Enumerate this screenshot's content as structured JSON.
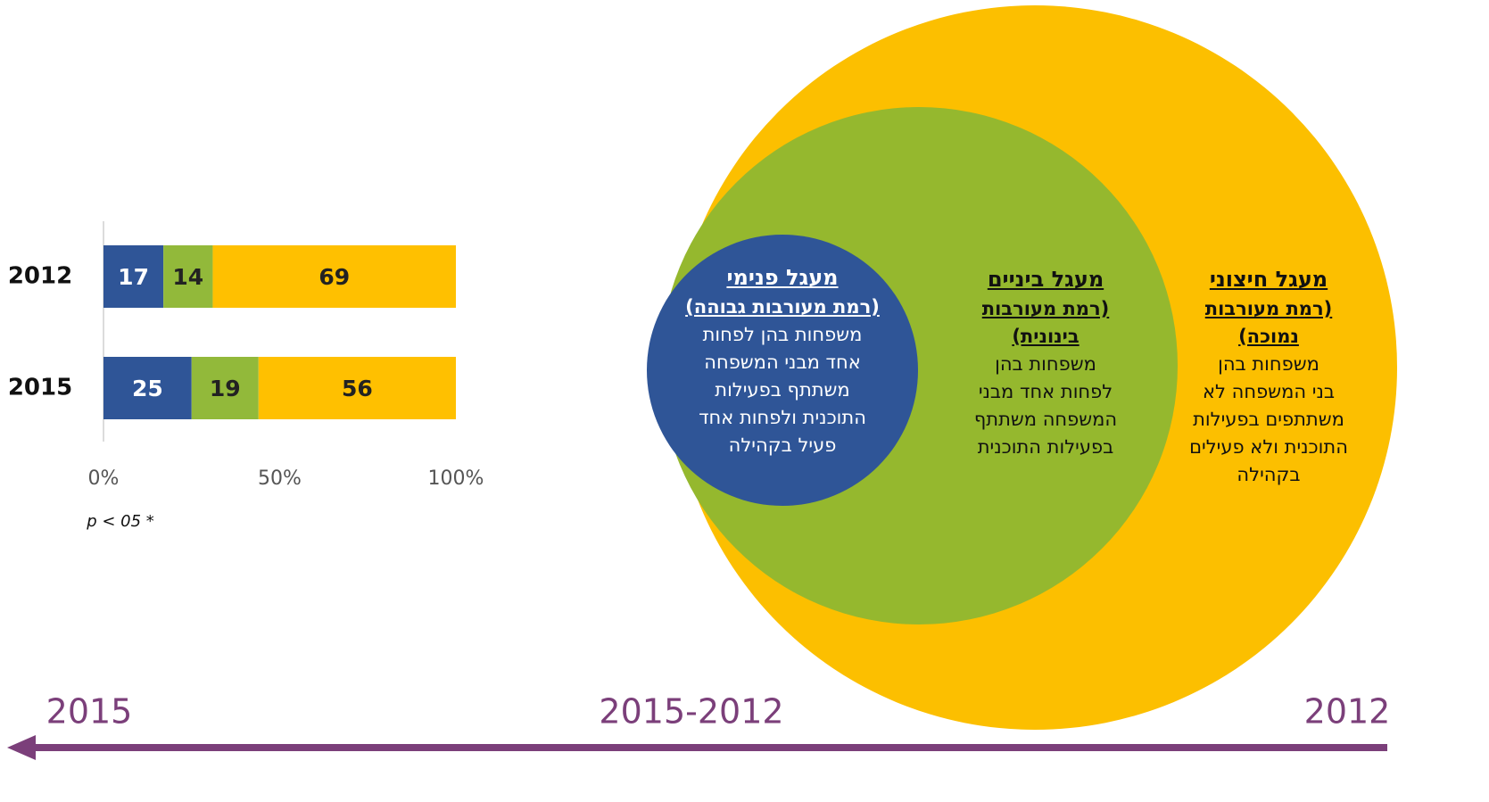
{
  "chart_data": {
    "type": "stacked_bar_horizontal",
    "categories": [
      "2012",
      "2015"
    ],
    "series": [
      {
        "color": "#2f5597",
        "values": [
          17,
          25
        ]
      },
      {
        "color": "#92b93a",
        "values": [
          14,
          19
        ]
      },
      {
        "color": "#ffc000",
        "values": [
          69,
          56
        ]
      }
    ],
    "xlim": [
      0,
      100
    ],
    "xticks": [
      {
        "value": 0,
        "label": "0%"
      },
      {
        "value": 50,
        "label": "50%"
      },
      {
        "value": 100,
        "label": "100%"
      }
    ],
    "note": "p < 05 *"
  },
  "circles": [
    {
      "title": "מעגל חיצוני",
      "subtitle": [
        "(רמת מעורבות",
        "נמוכה)"
      ],
      "text": [
        "משפחות בהן",
        "בני המשפחה לא",
        "משתתפים בפעילות",
        "התוכנית ולא פעילים",
        "בקהילה"
      ]
    },
    {
      "title": "מעגל ביניים",
      "subtitle": [
        "(רמת מעורבות",
        "בינונית)"
      ],
      "text": [
        "משפחות בהן",
        "לפחות אחד מבני",
        "המשפחה משתתף",
        "בפעילות התוכנית"
      ]
    },
    {
      "title": "מעגל פנימי",
      "subtitle": [
        "(רמת מעורבות גבוהה)"
      ],
      "text": [
        "משפחות בהן לפחות",
        "אחד מבני המשפחה",
        "משתתף בפעילות",
        "התוכנית ולפחות אחד",
        "פעיל בקהילה"
      ]
    }
  ],
  "timeline": [
    "2015",
    "2015-2012",
    "2012"
  ]
}
